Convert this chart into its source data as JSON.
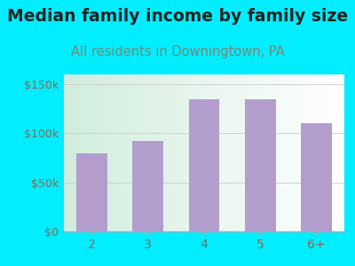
{
  "title": "Median family income by family size",
  "subtitle": "All residents in Downingtown, PA",
  "categories": [
    "2",
    "3",
    "4",
    "5",
    "6+"
  ],
  "values": [
    80000,
    92000,
    135000,
    135000,
    110000
  ],
  "bar_color": "#b39dcc",
  "background_outer": "#00eeff",
  "title_color": "#222222",
  "subtitle_color": "#778877",
  "tick_label_color": "#886655",
  "ytick_labels": [
    "$0",
    "$50k",
    "$100k",
    "$150k"
  ],
  "ytick_values": [
    0,
    50000,
    100000,
    150000
  ],
  "ylim": [
    0,
    160000
  ],
  "title_fontsize": 13.5,
  "subtitle_fontsize": 10.5
}
